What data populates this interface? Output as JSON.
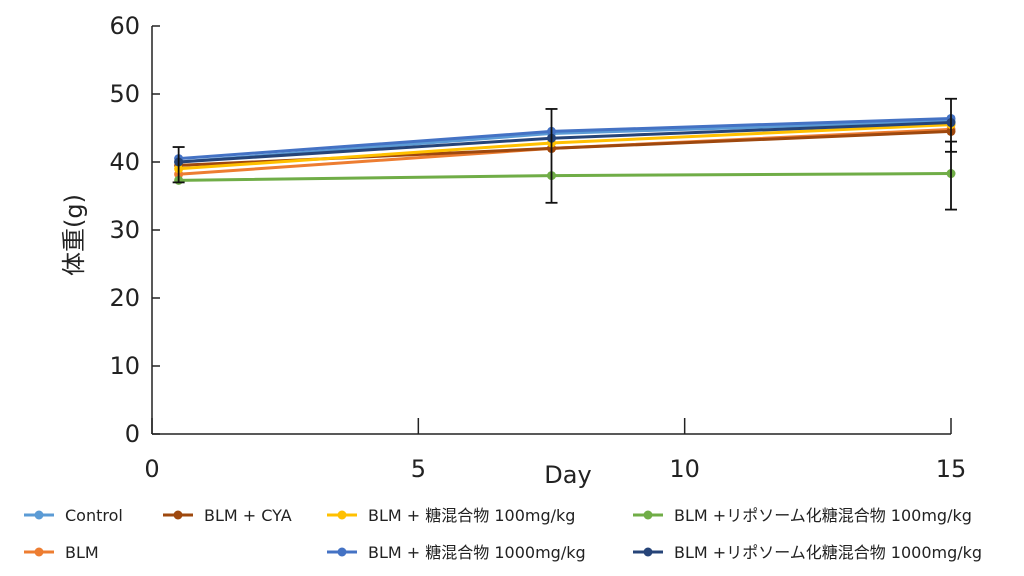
{
  "chart_data": {
    "type": "line",
    "title": "",
    "xlabel": "Day",
    "ylabel": "体重(g)",
    "xlim": [
      0,
      15
    ],
    "ylim": [
      0,
      60
    ],
    "xticks": [
      "0",
      "5",
      "10",
      "15"
    ],
    "yticks": [
      "0",
      "10",
      "20",
      "30",
      "40",
      "50",
      "60"
    ],
    "x": [
      0.5,
      7.5,
      15
    ],
    "series": [
      {
        "name": "Control",
        "color": "#5B9BD5",
        "values": [
          40.0,
          44.2,
          46.0
        ]
      },
      {
        "name": "BLM",
        "color": "#ED7D31",
        "values": [
          38.2,
          42.0,
          44.8
        ]
      },
      {
        "name": "BLM + CYA",
        "color": "#9E480E",
        "values": [
          39.5,
          42.0,
          44.5
        ]
      },
      {
        "name": "BLM + 糖混合物 100mg/kg",
        "color": "#FFC000",
        "values": [
          39.0,
          42.8,
          45.5
        ]
      },
      {
        "name": "BLM + 糖混合物 1000mg/kg",
        "color": "#4472C4",
        "values": [
          40.5,
          44.5,
          46.4
        ]
      },
      {
        "name": "BLM +リポソーム化糖混合物 100mg/kg",
        "color": "#70AD47",
        "values": [
          37.3,
          38.0,
          38.3
        ]
      },
      {
        "name": "BLM +リポソーム化糖混合物 1000mg/kg",
        "color": "#264478",
        "values": [
          40.0,
          43.5,
          45.8
        ]
      }
    ],
    "error_bars": [
      {
        "x": 0.5,
        "low": 37.0,
        "high": 42.2
      },
      {
        "x": 7.5,
        "low": 34.0,
        "high": 47.8
      },
      {
        "x": 15,
        "low": 33.0,
        "high": 49.3
      },
      {
        "x": 15,
        "low": 41.5,
        "high": 43.0
      }
    ],
    "legend_placement": "bottom"
  }
}
